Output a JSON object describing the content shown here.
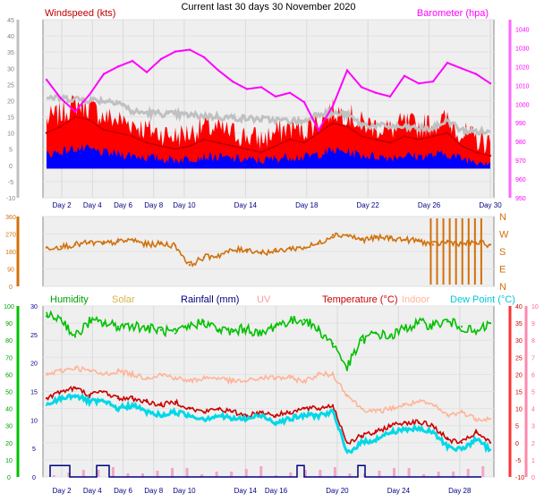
{
  "header": {
    "title": "Current last 30 days 30 November 2020"
  },
  "colors": {
    "windspeed": "#c00000",
    "wind_gust": "#ff0000",
    "wind_avg": "#0000ff",
    "wind_dir_trace": "#c0c0c0",
    "barometer": "#ff00ff",
    "direction": "#d2700a",
    "humidity": "#00c000",
    "solar": "#d4b44a",
    "rainfall": "#000080",
    "uv": "#ff9999",
    "temperature": "#cc0000",
    "indoor": "#ffb497",
    "dew_point": "#00d8e8",
    "grid_bg": "#f0f0f0"
  },
  "chart_data": [
    {
      "type": "line",
      "labels": {
        "left": "Windspeed (kts)",
        "right": "Barometer (hpa)"
      },
      "x_ticks": [
        "Day 2",
        "Day 4",
        "Day 6",
        "Day 8",
        "Day 10",
        "Day 14",
        "Day 18",
        "Day 22",
        "Day 26",
        "Day 30"
      ],
      "y_left": {
        "ticks": [
          45,
          40,
          35,
          30,
          25,
          20,
          15,
          10,
          5,
          0,
          -5,
          -10
        ],
        "ylim": [
          -10,
          45
        ]
      },
      "y_right": {
        "ticks": [
          1040,
          1030,
          1020,
          1010,
          1000,
          990,
          980,
          970,
          960,
          950
        ],
        "ylim": [
          950,
          1045
        ]
      },
      "series": [
        {
          "name": "Windspeed (kts)",
          "axis": "left",
          "values": [
            10,
            12,
            15,
            14,
            11,
            10,
            9,
            7,
            6,
            5,
            6,
            8,
            7,
            6,
            5,
            4,
            6,
            8,
            7,
            10,
            13,
            12,
            9,
            8,
            7,
            9,
            8,
            9,
            10,
            6,
            4,
            3
          ]
        },
        {
          "name": "Barometer (hpa)",
          "axis": "right",
          "values": [
            1013,
            1003,
            996,
            1005,
            1016,
            1020,
            1023,
            1017,
            1024,
            1028,
            1029,
            1025,
            1018,
            1012,
            1008,
            1009,
            1004,
            1006,
            1001,
            986,
            999,
            1018,
            1009,
            1006,
            1004,
            1015,
            1011,
            1012,
            1022,
            1019,
            1016,
            1011
          ]
        }
      ]
    },
    {
      "type": "line",
      "y_left": {
        "ticks": [
          360,
          270,
          180,
          90,
          0
        ]
      },
      "y_right_labels": [
        "N",
        "W",
        "S",
        "E",
        "N"
      ],
      "series": [
        {
          "name": "direction",
          "values": [
            200,
            205,
            215,
            225,
            220,
            230,
            240,
            215,
            220,
            210,
            110,
            150,
            160,
            185,
            190,
            175,
            180,
            195,
            200,
            220,
            265,
            265,
            240,
            250,
            250,
            240,
            235,
            215,
            230,
            220,
            225,
            215
          ]
        }
      ]
    },
    {
      "type": "line",
      "labels": {
        "humidity": "Humidity",
        "solar": "Solar",
        "rainfall": "Rainfall (mm)",
        "uv": "UV",
        "temperature": "Temperature (°C)",
        "indoor": "Indoor",
        "dew_point": "Dew Point (°C)"
      },
      "x_ticks": [
        "Day 2",
        "Day 4",
        "Day 6",
        "Day 8",
        "Day 10",
        "Day 14",
        "Day 16",
        "Day 20",
        "Day 24",
        "Day 28"
      ],
      "axes": {
        "humidity_pct": [
          100,
          90,
          80,
          70,
          60,
          50,
          40,
          30,
          20,
          10,
          0
        ],
        "rain_mm": [
          30,
          25,
          20,
          15,
          10,
          5,
          0
        ],
        "temperature_c": [
          40,
          35,
          30,
          25,
          20,
          15,
          10,
          5,
          0,
          -5,
          -10
        ],
        "uv_index": [
          10,
          9,
          8,
          7,
          6,
          5,
          4,
          3,
          2,
          1,
          0
        ]
      },
      "series": [
        {
          "name": "Humidity",
          "axis": "humidity_pct",
          "values": [
            94,
            93,
            82,
            91,
            90,
            88,
            89,
            87,
            86,
            84,
            88,
            91,
            86,
            85,
            87,
            83,
            89,
            91,
            92,
            86,
            78,
            64,
            80,
            84,
            82,
            87,
            90,
            89,
            91,
            88,
            84,
            90
          ]
        },
        {
          "name": "Indoor",
          "axis": "temperature_c",
          "values": [
            20,
            21,
            22,
            21,
            20,
            21,
            20,
            19,
            20,
            19,
            18,
            19,
            19,
            18,
            18,
            19,
            19,
            19,
            18,
            20,
            20,
            14,
            10,
            9,
            10,
            11,
            12,
            11,
            8,
            9,
            7,
            7
          ]
        },
        {
          "name": "Temperature (°C)",
          "axis": "temperature_c",
          "values": [
            13,
            15,
            16,
            14,
            15,
            13,
            13,
            12,
            11,
            12,
            10,
            9,
            10,
            9,
            8,
            9,
            8,
            9,
            10,
            10,
            11,
            0,
            2,
            3,
            5,
            6,
            6,
            5,
            1,
            0,
            3,
            0
          ]
        },
        {
          "name": "Dew Point (°C)",
          "axis": "temperature_c",
          "values": [
            11,
            13,
            14,
            12,
            12,
            10,
            11,
            9,
            8,
            9,
            8,
            7,
            8,
            7,
            7,
            8,
            6,
            7,
            8,
            8,
            9,
            -3,
            0,
            1,
            3,
            4,
            4,
            3,
            -1,
            -2,
            1,
            -2
          ]
        }
      ]
    }
  ]
}
